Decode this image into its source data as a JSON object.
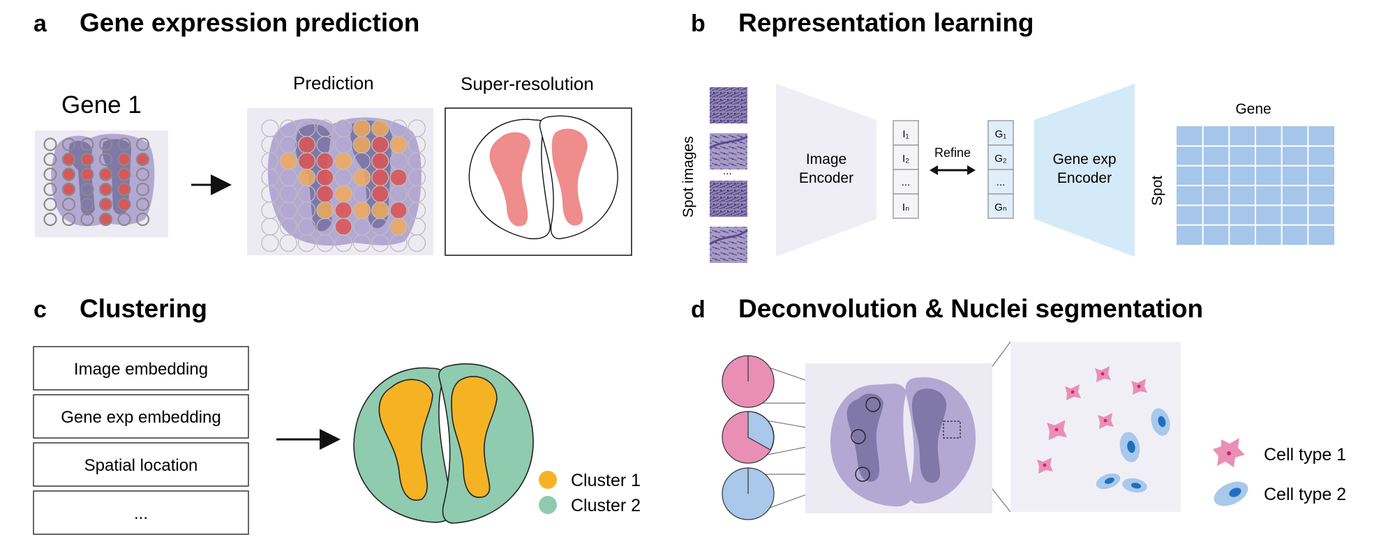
{
  "panels": {
    "a": {
      "letter": "a",
      "title": "Gene expression prediction",
      "gene_label": "Gene 1",
      "prediction_label": "Prediction",
      "superres_label": "Super-resolution"
    },
    "b": {
      "letter": "b",
      "title": "Representation learning",
      "spot_images_label": "Spot images",
      "spot_images_ellipsis": "...",
      "image_encoder_line1": "Image",
      "image_encoder_line2": "Encoder",
      "image_tokens": [
        "I₁",
        "I₂",
        "...",
        "Iₙ"
      ],
      "refine_label": "Refine",
      "gene_tokens": [
        "G₁",
        "G₂",
        "...",
        "Gₙ"
      ],
      "gene_encoder_line1": "Gene exp",
      "gene_encoder_line2": "Encoder",
      "matrix_col_label": "Gene",
      "matrix_row_label": "Spot"
    },
    "c": {
      "letter": "c",
      "title": "Clustering",
      "inputs": [
        "Image embedding",
        "Gene exp embedding",
        "Spatial location",
        "..."
      ],
      "legend": [
        {
          "label": "Cluster 1",
          "color": "#f5b324"
        },
        {
          "label": "Cluster 2",
          "color": "#8fcbae"
        }
      ]
    },
    "d": {
      "letter": "d",
      "title": "Deconvolution & Nuclei segmentation",
      "legend": [
        {
          "label": "Cell type 1",
          "color": "#e98fb5"
        },
        {
          "label": "Cell type 2",
          "color": "#a9c8ea"
        }
      ]
    }
  },
  "colors": {
    "tissue_outer": "#b3a8d3",
    "tissue_inner": "#7f78a8",
    "spot_red": "#d9565a",
    "spot_orange": "#f0a95a",
    "matrix_blue": "#a6c5ea",
    "encoder_lavender": "#efedf5",
    "encoder_blue": "#d5eaf8",
    "superres_red": "#ef8c8c"
  }
}
